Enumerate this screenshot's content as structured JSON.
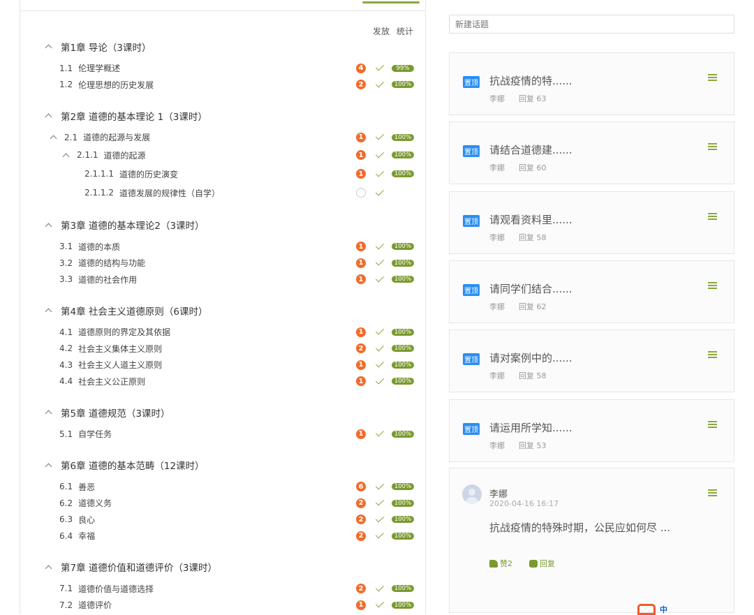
{
  "columns": {
    "publish": "发放",
    "stats": "统计"
  },
  "chapters": [
    {
      "title": "第1章 导论（3课时）",
      "items": [
        {
          "num": "1.1",
          "label": "伦理学概述",
          "count": "4",
          "pct": "99%"
        },
        {
          "num": "1.2",
          "label": "伦理思想的历史发展",
          "count": "2",
          "pct": "100%"
        }
      ]
    },
    {
      "title": "第2章 道德的基本理论 1（3课时）",
      "items": [
        {
          "num": "2.1",
          "label": "道德的起源与发展",
          "count": "1",
          "pct": "100%",
          "level": 1
        },
        {
          "num": "2.1.1",
          "label": "道德的起源",
          "count": "1",
          "pct": "100%",
          "level": 2
        },
        {
          "num": "2.1.1.1",
          "label": "道德的历史演变",
          "count": "1",
          "pct": "100%",
          "level": 3
        },
        {
          "num": "2.1.1.2",
          "label": "道德发展的规律性（自学）",
          "count": "",
          "pct": "",
          "level": 3
        }
      ]
    },
    {
      "title": "第3章 道德的基本理论2（3课时）",
      "items": [
        {
          "num": "3.1",
          "label": "道德的本质",
          "count": "1",
          "pct": "100%"
        },
        {
          "num": "3.2",
          "label": "道德的结构与功能",
          "count": "1",
          "pct": "100%"
        },
        {
          "num": "3.3",
          "label": "道德的社会作用",
          "count": "1",
          "pct": "100%"
        }
      ]
    },
    {
      "title": "第4章 社会主义道德原则（6课时）",
      "items": [
        {
          "num": "4.1",
          "label": "道德原则的界定及其依据",
          "count": "1",
          "pct": "100%"
        },
        {
          "num": "4.2",
          "label": "社会主义集体主义原则",
          "count": "2",
          "pct": "100%"
        },
        {
          "num": "4.3",
          "label": "社会主义人道主义原则",
          "count": "1",
          "pct": "100%"
        },
        {
          "num": "4.4",
          "label": "社会主义公正原则",
          "count": "1",
          "pct": "100%"
        }
      ]
    },
    {
      "title": "第5章 道德规范（3课时）",
      "items": [
        {
          "num": "5.1",
          "label": "自学任务",
          "count": "1",
          "pct": "100%"
        }
      ]
    },
    {
      "title": "第6章 道德的基本范畴（12课时）",
      "items": [
        {
          "num": "6.1",
          "label": "善恶",
          "count": "6",
          "pct": "100%"
        },
        {
          "num": "6.2",
          "label": "道德义务",
          "count": "2",
          "pct": "100%"
        },
        {
          "num": "6.3",
          "label": "良心",
          "count": "2",
          "pct": "100%"
        },
        {
          "num": "6.4",
          "label": "幸福",
          "count": "2",
          "pct": "100%"
        }
      ]
    },
    {
      "title": "第7章 道德价值和道德评价（3课时）",
      "items": [
        {
          "num": "7.1",
          "label": "道德价值与道德选择",
          "count": "2",
          "pct": "100%"
        },
        {
          "num": "7.2",
          "label": "道德评价",
          "count": "1",
          "pct": "100%"
        }
      ]
    }
  ],
  "new_topic_placeholder": "新建话题",
  "pinned_label": "置顶",
  "topics": [
    {
      "title": "抗战疫情的特......",
      "author": "李娜",
      "replies": "回复 63"
    },
    {
      "title": "请结合道德建......",
      "author": "李娜",
      "replies": "回复 60"
    },
    {
      "title": "请观看资料里......",
      "author": "李娜",
      "replies": "回复 58"
    },
    {
      "title": "请同学们结合......",
      "author": "李娜",
      "replies": "回复 62"
    },
    {
      "title": "请对案例中的......",
      "author": "李娜",
      "replies": "回复 58"
    },
    {
      "title": "请运用所学知......",
      "author": "李娜",
      "replies": "回复 53"
    }
  ],
  "post": {
    "author": "李娜",
    "time": "2020-04-16 16:17",
    "text": "抗战疫情的特殊时期，公民应如何尽 ...",
    "like": "赞2",
    "reply": "回复"
  },
  "ime": {
    "lang": "中"
  },
  "colors": {
    "accent": "#7a9a2e",
    "badge": "#f26b2a",
    "pinned": "#2a8ff0"
  }
}
